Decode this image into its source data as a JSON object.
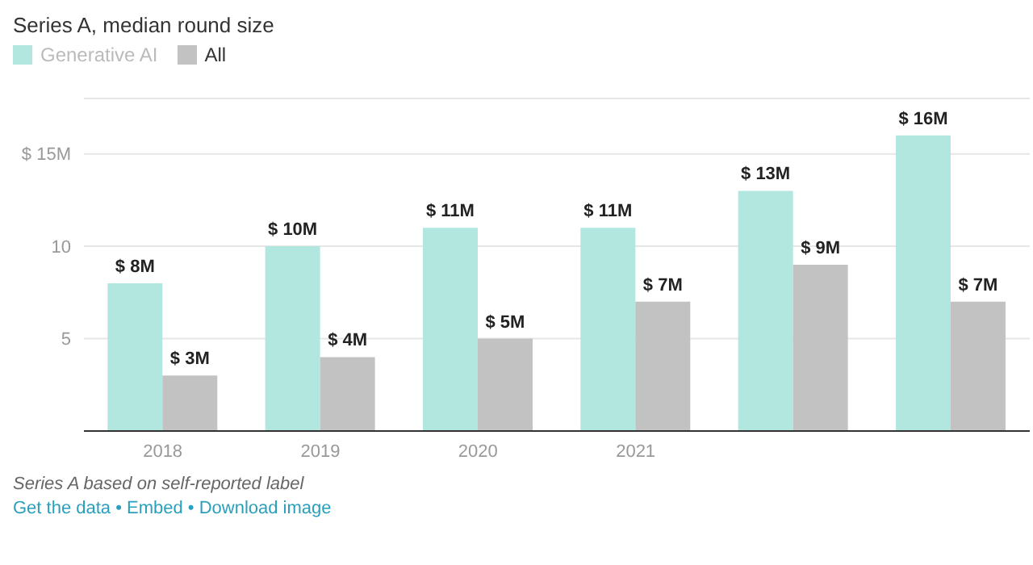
{
  "chart_data": {
    "type": "bar",
    "title": "Series A, median round size",
    "categories": [
      "2018",
      "2019",
      "2020",
      "2021",
      null,
      null
    ],
    "series": [
      {
        "name": "Generative AI",
        "color": "#b2e7df",
        "values": [
          8,
          10,
          11,
          11,
          13,
          16
        ],
        "value_labels": [
          "$ 8M",
          "$ 10M",
          "$ 11M",
          "$ 11M",
          "$ 13M",
          "$ 16M"
        ]
      },
      {
        "name": "All",
        "color": "#c2c2c2",
        "values": [
          3,
          4,
          5,
          7,
          9,
          7
        ],
        "value_labels": [
          "$ 3M",
          "$ 4M",
          "$ 5M",
          "$ 7M",
          "$ 9M",
          "$ 7M"
        ]
      }
    ],
    "ylim": [
      0,
      18
    ],
    "yticks": [
      {
        "value": 0,
        "label": null
      },
      5,
      10,
      {
        "value": 15,
        "label": "$ 15M"
      }
    ],
    "grid": "y",
    "legend": "top left",
    "annotations": [
      "Series A based on self-reported label",
      "Get the data • Embed • Download image"
    ]
  }
}
